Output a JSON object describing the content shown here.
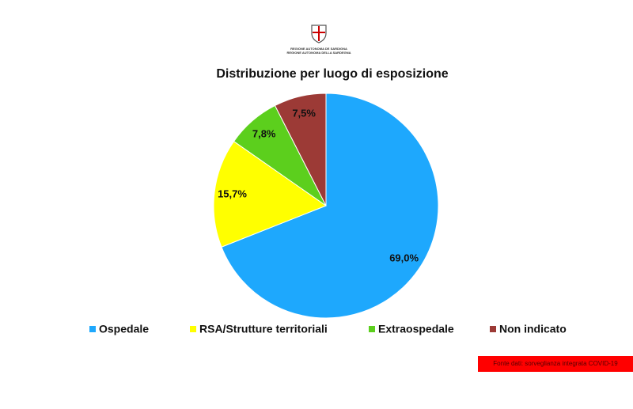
{
  "header": {
    "line1": "REGIONE AUTONOMA DE SARDIGNA",
    "line2": "REGIONE AUTONOMA DELLA SARDEGNA"
  },
  "chart_data": {
    "type": "pie",
    "title": "Distribuzione per luogo di esposizione",
    "categories": [
      "Ospedale",
      "RSA/Strutture territoriali",
      "Extraospedale",
      "Non indicato"
    ],
    "values": [
      69.0,
      15.7,
      7.8,
      7.5
    ],
    "value_labels": [
      "69,0%",
      "15,7%",
      "7,8%",
      "7,5%"
    ],
    "colors": [
      "#1ea8fd",
      "#ffff00",
      "#5ccf1d",
      "#9c3a36"
    ],
    "legend": "bottom"
  },
  "footer": {
    "source": "Fonte dati: sorveglianza integrata COVID-19"
  }
}
